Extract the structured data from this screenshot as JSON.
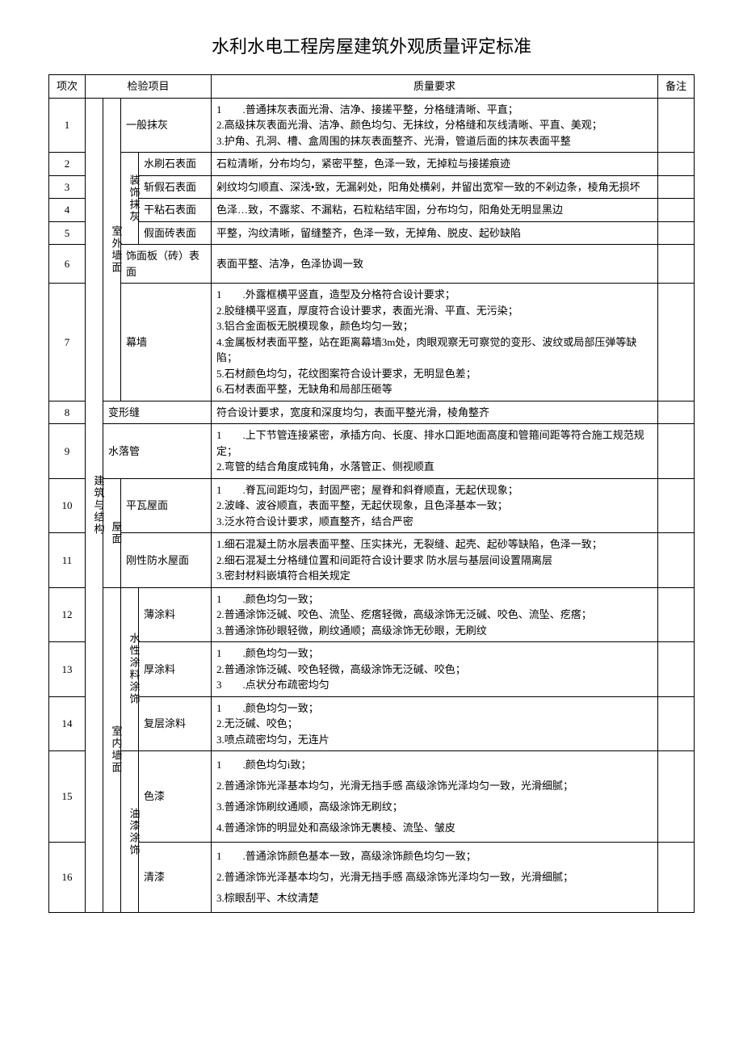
{
  "title": "水利水电工程房屋建筑外观质量评定标准",
  "headers": {
    "idx": "项次",
    "item": "检验项目",
    "req": "质量要求",
    "note": "备注"
  },
  "groups": {
    "main": "建筑与结构",
    "out_wall": "室外墙面",
    "deco_plaster": "装饰抹灰",
    "roof": "屋面",
    "in_wall": "室内墙面",
    "water_paint": "水性涂料涂饰",
    "oil_paint": "油漆涂饰"
  },
  "rows": {
    "r1": {
      "idx": "1",
      "name": "一般抹灰",
      "req": "1　　.普通抹灰表面光滑、洁净、接搓平整，分格缝清晰、平直；\n2.高级抹灰表面光滑、洁净、颜色均匀、无抹纹，分格缝和灰线清晰、平直、美观；\n3.护角、孔洞、槽、盒周围的抹灰表面整齐、光滑，管道后面的抹灰表面平整"
    },
    "r2": {
      "idx": "2",
      "name": "水刷石表面",
      "req": "石粒清晰，分布均匀，紧密平整，色泽一致，无掉粒与接搓痕迹"
    },
    "r3": {
      "idx": "3",
      "name": "斩假石表面",
      "req": "剁纹均匀顺直、深浅•致，无漏剁处，阳角处横剁，并留出宽窄一致的不剁边条，棱角无损坏"
    },
    "r4": {
      "idx": "4",
      "name": "干粘石表面",
      "req": "色泽…致，不露浆、不漏粘，石粒粘结牢固，分布均匀，阳角处无明显黑边"
    },
    "r5": {
      "idx": "5",
      "name": "假面砖表面",
      "req": "平整，沟纹清晰，留缝整齐，色泽一致，无掉角、脱皮、起砂缺陷"
    },
    "r6": {
      "idx": "6",
      "name": "饰面板（砖）表面",
      "req": "表面平整、洁净，色泽协调一致"
    },
    "r7": {
      "idx": "7",
      "name": "幕墙",
      "req": "1　　.外露框横平竖直，造型及分格符合设计要求；\n2.胶缝横平竖直，厚度符合设计要求，表面光滑、平直、无污染；\n3.铝合金面板无脱模现象，颜色均匀一致；\n4.金属板材表面平整，站在距离幕墙3m处，肉眼观察无可察觉的变形、波纹或局部压弹等缺陷；\n5.石材颜色均匀，花纹图案符合设计要求，无明显色差；\n6.石材表面平整，无缺角和局部压砸等"
    },
    "r8": {
      "idx": "8",
      "name": "变形缝",
      "req": "符合设计要求，宽度和深度均匀，表面平整光滑，棱角整齐"
    },
    "r9": {
      "idx": "9",
      "name": "水落管",
      "req": "1　　.上下节管连接紧密，承插方向、长度、排水口距地面高度和管箍间距等符合施工规范规定；\n2.弯管的结合角度成钝角，水落管正、侧视顺直"
    },
    "r10": {
      "idx": "10",
      "name": "平瓦屋面",
      "req": "1　　.脊瓦间距均匀，封固严密；屋脊和斜脊顺直，无起伏现象；\n2.波峰、波谷顺直，表面平整，无起伏现象，且色泽基本一致；\n3.泛水符合设计要求，顺直整齐，结合严密"
    },
    "r11": {
      "idx": "11",
      "name": "刚性防水屋面",
      "req": "1.细石混凝土防水层表面平整、压实抹光，无裂缝、起壳、起砂等缺陷，色泽一致；\n2.细石混凝土分格缝位置和间距符合设计要求 防水层与基层间设置隔离层\n3.密封材料嵌填符合相关规定"
    },
    "r12": {
      "idx": "12",
      "name": "薄涂料",
      "req": "1　　.颜色均匀一致；\n2.普通涂饰泛碱、咬色、流坠、疙瘩轻微，高级涂饰无泛碱、咬色、流坠、疙瘩；\n3.普通涂饰砂眼轻微，刷纹通顺；高级涂饰无砂眼，无刷纹"
    },
    "r13": {
      "idx": "13",
      "name": "厚涂料",
      "req": "1　　.颜色均匀一致；\n2.普通涂饰泛碱、咬色轻微，高级涂饰无泛碱、咬色；\n3　　.点状分布疏密均匀"
    },
    "r14": {
      "idx": "14",
      "name": "复层涂料",
      "req": "1　　.颜色均匀一致；\n2.无泛碱、咬色；\n3.喷点疏密均匀，无连片"
    },
    "r15": {
      "idx": "15",
      "name": "色漆",
      "req": "1　　.颜色均匀i致；\n2.普通涂饰光泽基本均匀，光滑无挡手感 高级涂饰光泽均匀一致，光滑细腻；\n3.普通涂饰刷纹通顺，高级涂饰无刷纹；\n4.普通涂饰的明显处和高级涂饰无裹棱、流坠、皱皮"
    },
    "r16": {
      "idx": "16",
      "name": "清漆",
      "req": "1　　.普通涂饰颜色基本一致，高级涂饰颜色均匀一致；\n2.普通涂饰光泽基本均匀，光滑无挡手感 高级涂饰光泽均匀一致，光滑细腻；\n3.棕眼刮平、木纹清楚"
    }
  }
}
